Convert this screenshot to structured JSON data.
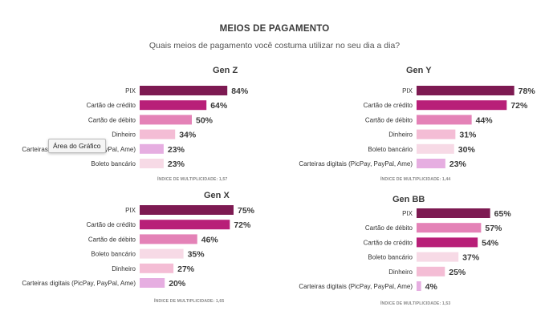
{
  "title": "MEIOS DE PAGAMENTO",
  "subtitle": "Quais meios de pagamento você costuma utilizar no seu dia a dia?",
  "tooltip": "Área do Gráfico",
  "colors": {
    "PIX": "#7d1a52",
    "Cartão de crédito": "#b81f78",
    "Cartão de débito": "#e482b7",
    "Dinheiro": "#f4bdd5",
    "Boleto bancário": "#f7dae6",
    "Carteiras digitais (PicPay, PayPal, Ame)": "#e6aee1"
  },
  "chart_data": [
    {
      "type": "bar",
      "title": "Gen Z",
      "categories": [
        "PIX",
        "Cartão de crédito",
        "Cartão de débito",
        "Dinheiro",
        "Carteiras digitais (PicPay, PayPal, Ame)",
        "Boleto bancário"
      ],
      "values": [
        84,
        64,
        50,
        34,
        23,
        23
      ],
      "labels": [
        "84%",
        "64%",
        "50%",
        "34%",
        "23%",
        "23%"
      ],
      "footer": "ÍNDICE DE MULTIPLICIDADE: 1,57"
    },
    {
      "type": "bar",
      "title": "Gen Y",
      "categories": [
        "PIX",
        "Cartão de crédito",
        "Cartão de débito",
        "Dinheiro",
        "Boleto bancário",
        "Carteiras digitais (PicPay, PayPal, Ame)"
      ],
      "values": [
        78,
        72,
        44,
        31,
        30,
        23
      ],
      "labels": [
        "78%",
        "72%",
        "44%",
        "31%",
        "30%",
        "23%"
      ],
      "footer": "ÍNDICE DE MULTIPLICIDADE: 1,44"
    },
    {
      "type": "bar",
      "title": "Gen X",
      "categories": [
        "PIX",
        "Cartão de crédito",
        "Cartão de débito",
        "Boleto bancário",
        "Dinheiro",
        "Carteiras digitais (PicPay, PayPal, Ame)"
      ],
      "values": [
        75,
        72,
        46,
        35,
        27,
        20
      ],
      "labels": [
        "75%",
        "72%",
        "46%",
        "35%",
        "27%",
        "20%"
      ],
      "footer": "ÍNDICE DE MULTIPLICIDADE: 1,65"
    },
    {
      "type": "bar",
      "title": "Gen BB",
      "categories": [
        "PIX",
        "Cartão de débito",
        "Cartão de crédito",
        "Boleto bancário",
        "Dinheiro",
        "Carteiras digitais (PicPay, PayPal, Ame)"
      ],
      "values": [
        65,
        57,
        54,
        37,
        25,
        4
      ],
      "labels": [
        "65%",
        "57%",
        "54%",
        "37%",
        "25%",
        "4%"
      ],
      "footer": "ÍNDICE DE MULTIPLICIDADE: 1,53"
    }
  ]
}
